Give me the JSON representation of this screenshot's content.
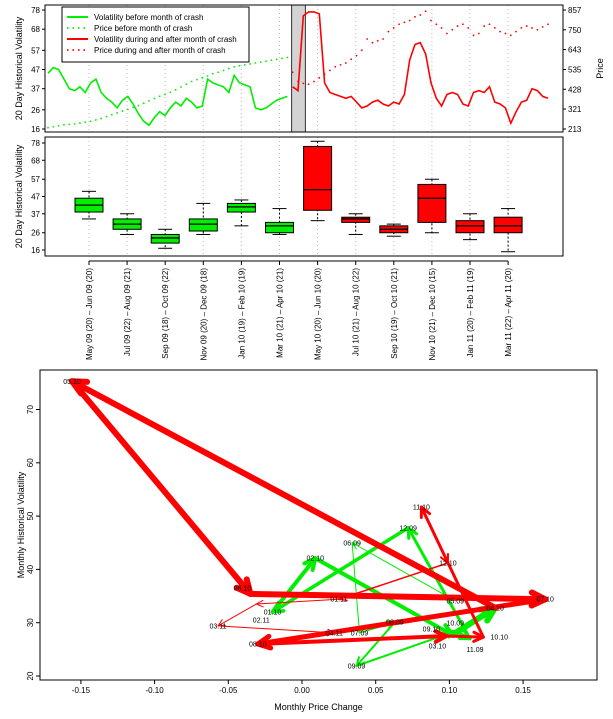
{
  "chart_data": [
    {
      "type": "line",
      "ylabel": "20 Day Historical Volatility",
      "ylabel_right": "Price",
      "yticks": [
        16,
        26,
        37,
        47,
        57,
        68,
        78
      ],
      "yticks_right": [
        213,
        321,
        428,
        535,
        643,
        750,
        857
      ],
      "ylim": [
        16,
        78
      ],
      "ylim_right": [
        213,
        857
      ],
      "crash_month_x": [
        46,
        48
      ],
      "grid": "vertical dotted",
      "legend_placement": "top-left",
      "legend": [
        "Volatility before month of crash",
        "Price before month of crash",
        "Volatility during and after month of crash",
        "Price during and after month of crash"
      ],
      "colors": {
        "before": "#00ee00",
        "after": "#ff0000",
        "crash_shade": "#d3d3d3"
      },
      "series": [
        {
          "name": "Volatility before month of crash",
          "axis": "left",
          "style": "solid",
          "x_start": 0,
          "values": [
            45,
            48,
            47,
            42,
            37,
            36,
            38,
            35,
            40,
            42,
            35,
            32,
            30,
            27,
            31,
            33,
            29,
            24,
            20,
            18,
            22,
            25,
            23,
            27,
            30,
            28,
            32,
            30,
            27,
            28,
            42,
            40,
            39,
            38,
            35,
            44,
            40,
            39,
            38,
            27,
            26,
            27,
            29,
            31,
            32,
            33
          ]
        },
        {
          "name": "Price before month of crash",
          "axis": "right",
          "style": "dotted",
          "x_start": 0,
          "values": [
            220,
            225,
            230,
            235,
            238,
            240,
            245,
            250,
            255,
            262,
            270,
            280,
            290,
            300,
            310,
            320,
            330,
            340,
            352,
            365,
            378,
            390,
            400,
            412,
            425,
            440,
            455,
            470,
            480,
            490,
            500,
            512,
            520,
            530,
            540,
            550,
            555,
            560,
            565,
            570,
            575,
            580,
            585,
            590,
            595,
            600
          ]
        },
        {
          "name": "Volatility during and after month of crash",
          "axis": "left",
          "style": "solid",
          "x_start": 46,
          "values": [
            38,
            36,
            75,
            77,
            77,
            76,
            40,
            35,
            34,
            33,
            32,
            33,
            30,
            27,
            28,
            30,
            31,
            29,
            28,
            30,
            29,
            34,
            52,
            60,
            61,
            55,
            40,
            32,
            28,
            34,
            35,
            34,
            29,
            28,
            35,
            36,
            35,
            38,
            30,
            29,
            27,
            19,
            25,
            30,
            31,
            37,
            36,
            33,
            32
          ]
        },
        {
          "name": "Price during and after month of crash",
          "axis": "right",
          "style": "dotted",
          "x_start": 46,
          "values": [
            520,
            470,
            460,
            455,
            470,
            490,
            510,
            530,
            550,
            560,
            570,
            590,
            610,
            640,
            700,
            680,
            690,
            700,
            740,
            760,
            780,
            790,
            800,
            820,
            830,
            850,
            800,
            780,
            760,
            730,
            750,
            770,
            780,
            760,
            720,
            730,
            770,
            780,
            760,
            740,
            730,
            720,
            740,
            760,
            770,
            760,
            750,
            765,
            780
          ]
        }
      ]
    },
    {
      "type": "box",
      "ylabel": "20 Day Historical Volatility",
      "yticks": [
        16,
        26,
        37,
        47,
        57,
        68,
        78
      ],
      "ylim": [
        16,
        78
      ],
      "categories": [
        "May 09 (20) – Jun 09 (20)",
        "Jul 09 (22) – Aug 09 (21)",
        "Sep 09 (18) – Oct 09 (22)",
        "Nov 09 (20) – Dec 09 (18)",
        "Jan 10 (19) – Feb 10 (19)",
        "Mar 10 (21) – Apr 10 (21)",
        "May 10 (20) – Jun 10 (20)",
        "Jul 10 (21) – Aug 10 (22)",
        "Sep 10 (19) – Oct 10 (21)",
        "Nov 10 (21) – Dec 10 (15)",
        "Jan 11 (20) – Feb 11 (19)",
        "Mar 11 (22) – Apr 11 (20)"
      ],
      "boxes": [
        {
          "min": 34,
          "q1": 38,
          "median": 42,
          "q3": 46,
          "max": 50,
          "color": "#00ee00"
        },
        {
          "min": 25,
          "q1": 28,
          "median": 31,
          "q3": 34,
          "max": 37,
          "color": "#00ee00"
        },
        {
          "min": 17,
          "q1": 20,
          "median": 23,
          "q3": 25,
          "max": 28,
          "color": "#00ee00"
        },
        {
          "min": 25,
          "q1": 27,
          "median": 31,
          "q3": 34,
          "max": 43,
          "color": "#00ee00"
        },
        {
          "min": 30,
          "q1": 38,
          "median": 41,
          "q3": 43,
          "max": 45,
          "color": "#00ee00"
        },
        {
          "min": 25,
          "q1": 26,
          "median": 30,
          "q3": 32,
          "max": 40,
          "color": "#00ee00"
        },
        {
          "min": 33,
          "q1": 39,
          "median": 51,
          "q3": 76,
          "max": 79,
          "color": "#ff0000"
        },
        {
          "min": 25,
          "q1": 32,
          "median": 34,
          "q3": 35,
          "max": 37,
          "color": "#ff0000"
        },
        {
          "min": 24,
          "q1": 26,
          "median": 28,
          "q3": 30,
          "max": 31,
          "color": "#ff0000"
        },
        {
          "min": 26,
          "q1": 32,
          "median": 46,
          "q3": 54,
          "max": 57,
          "color": "#ff0000"
        },
        {
          "min": 22,
          "q1": 26,
          "median": 30,
          "q3": 33,
          "max": 37,
          "color": "#ff0000"
        },
        {
          "min": 15,
          "q1": 26,
          "median": 30,
          "q3": 35,
          "max": 40,
          "color": "#ff0000"
        }
      ]
    },
    {
      "type": "scatter",
      "xlabel": "Monthly Price Change",
      "ylabel": "Monthly Historical Volatility",
      "xticks": [
        -0.15,
        -0.1,
        -0.05,
        0.0,
        0.05,
        0.1,
        0.15
      ],
      "xtick_labels": [
        "-0.15",
        "-0.10",
        "-0.05",
        "0.00",
        "0.05",
        "0.10",
        "0.15"
      ],
      "yticks": [
        20,
        30,
        40,
        50,
        60,
        70
      ],
      "xlim": [
        -0.17,
        0.18
      ],
      "ylim": [
        19,
        77
      ],
      "points": [
        {
          "label": "05.09",
          "x": 0.104,
          "y": 34.1,
          "color": "#00ee00",
          "weight": 1
        },
        {
          "label": "06.09",
          "x": 0.034,
          "y": 45.0,
          "color": "#00ee00",
          "weight": 1
        },
        {
          "label": "07.09",
          "x": 0.039,
          "y": 28.1,
          "color": "#00ee00",
          "weight": 1
        },
        {
          "label": "08.09",
          "x": 0.063,
          "y": 30.1,
          "color": "#00ee00",
          "weight": 1.5
        },
        {
          "label": "09.09",
          "x": 0.037,
          "y": 21.9,
          "color": "#00ee00",
          "weight": 2
        },
        {
          "label": "10.09",
          "x": 0.104,
          "y": 28.4,
          "color": "#00ee00",
          "weight": 2
        },
        {
          "label": "11.09",
          "x": 0.114,
          "y": 27.0,
          "color": "#00ee00",
          "weight": 3
        },
        {
          "label": "12.09",
          "x": 0.072,
          "y": 47.8,
          "color": "#00ee00",
          "weight": 3
        },
        {
          "label": "01.10",
          "x": -0.02,
          "y": 32.0,
          "color": "#00ee00",
          "weight": 3.5
        },
        {
          "label": "02.10",
          "x": 0.009,
          "y": 42.1,
          "color": "#00ee00",
          "weight": 4
        },
        {
          "label": "03.10",
          "x": 0.102,
          "y": 27.7,
          "color": "#00ee00",
          "weight": 4
        },
        {
          "label": "04.10",
          "x": 0.131,
          "y": 32.8,
          "color": "#ff0000",
          "weight": 6
        },
        {
          "label": "05.10",
          "x": -0.156,
          "y": 75.3,
          "color": "#ff0000",
          "weight": 6
        },
        {
          "label": "06.10",
          "x": -0.035,
          "y": 35.4,
          "color": "#ff0000",
          "weight": 6
        },
        {
          "label": "07.10",
          "x": 0.165,
          "y": 34.4,
          "color": "#ff0000",
          "weight": 6
        },
        {
          "label": "08.10",
          "x": -0.03,
          "y": 26.0,
          "color": "#ff0000",
          "weight": 5
        },
        {
          "label": "09.10",
          "x": 0.098,
          "y": 27.5,
          "color": "#ff0000",
          "weight": 4
        },
        {
          "label": "10.10",
          "x": 0.123,
          "y": 27.3,
          "color": "#ff0000",
          "weight": 3
        },
        {
          "label": "11.10",
          "x": 0.081,
          "y": 51.7,
          "color": "#ff0000",
          "weight": 3
        },
        {
          "label": "12.10",
          "x": 0.099,
          "y": 41.2,
          "color": "#ff0000",
          "weight": 2
        },
        {
          "label": "01.11",
          "x": 0.025,
          "y": 34.4,
          "color": "#ff0000",
          "weight": 1.5
        },
        {
          "label": "02.11",
          "x": -0.031,
          "y": 33.5,
          "color": "#ff0000",
          "weight": 1
        },
        {
          "label": "03.11",
          "x": -0.057,
          "y": 29.4,
          "color": "#ff0000",
          "weight": 1
        },
        {
          "label": "04.11",
          "x": 0.022,
          "y": 28.1,
          "color": "#ff0000",
          "weight": 1
        }
      ]
    }
  ]
}
